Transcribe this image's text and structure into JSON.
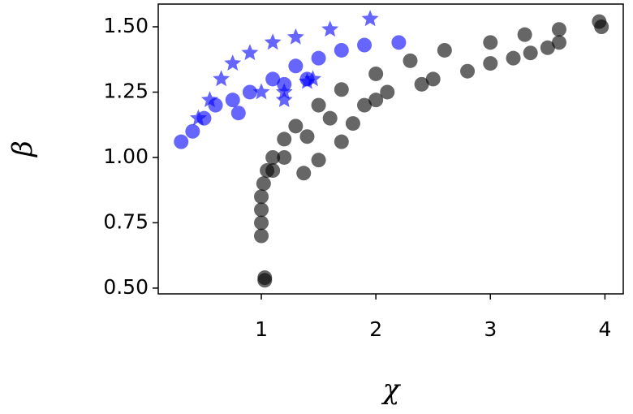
{
  "chart_data": {
    "type": "scatter",
    "xlabel": "χ",
    "ylabel": "β",
    "xlim": [
      0.1,
      4.16
    ],
    "ylim": [
      0.478,
      1.587
    ],
    "xticks": [
      1,
      2,
      3,
      4
    ],
    "yticks": [
      {
        "value": 0.5,
        "label": "0.50"
      },
      {
        "value": 0.75,
        "label": "0.75"
      },
      {
        "value": 1.0,
        "label": "1.00"
      },
      {
        "value": 1.25,
        "label": "1.25"
      },
      {
        "value": 1.5,
        "label": "1.50"
      }
    ],
    "grid": false,
    "series": [
      {
        "color": "#000000",
        "marker": "circle",
        "x": [
          1.0,
          1.0,
          1.0,
          1.0,
          1.02,
          1.05,
          1.1,
          1.2,
          1.3,
          1.5,
          1.7,
          2.0,
          2.3,
          2.6,
          3.0,
          3.3,
          3.6,
          3.95,
          1.03,
          1.03,
          1.37,
          1.5,
          1.7,
          1.8,
          1.9,
          2.1,
          2.4,
          2.8,
          3.2,
          3.6,
          3.97,
          3.35,
          1.1,
          1.2,
          1.4,
          1.6,
          2.0,
          2.5,
          3.0,
          3.5
        ],
        "values": [
          0.7,
          0.75,
          0.8,
          0.85,
          0.9,
          0.95,
          1.0,
          1.07,
          1.12,
          1.2,
          1.26,
          1.32,
          1.37,
          1.41,
          1.44,
          1.47,
          1.49,
          1.52,
          0.53,
          0.54,
          0.94,
          0.99,
          1.06,
          1.13,
          1.2,
          1.25,
          1.28,
          1.33,
          1.38,
          1.44,
          1.5,
          1.4,
          0.95,
          1.0,
          1.08,
          1.15,
          1.22,
          1.3,
          1.36,
          1.42
        ]
      },
      {
        "color": "#0000ff",
        "marker": "circle",
        "x": [
          0.3,
          0.4,
          0.5,
          0.6,
          0.75,
          0.8,
          0.9,
          1.1,
          1.3,
          1.5,
          1.7,
          1.9,
          2.2,
          1.2,
          1.4
        ],
        "values": [
          1.06,
          1.1,
          1.15,
          1.2,
          1.22,
          1.17,
          1.25,
          1.3,
          1.35,
          1.38,
          1.41,
          1.43,
          1.44,
          1.28,
          1.3
        ]
      },
      {
        "color": "#0000ff",
        "marker": "star",
        "x": [
          0.45,
          0.55,
          0.65,
          0.75,
          0.9,
          1.1,
          1.3,
          1.6,
          1.95,
          1.0,
          1.2,
          1.4,
          1.45,
          1.2
        ],
        "values": [
          1.15,
          1.22,
          1.3,
          1.36,
          1.4,
          1.44,
          1.46,
          1.49,
          1.53,
          1.25,
          1.25,
          1.29,
          1.3,
          1.22
        ]
      }
    ]
  }
}
